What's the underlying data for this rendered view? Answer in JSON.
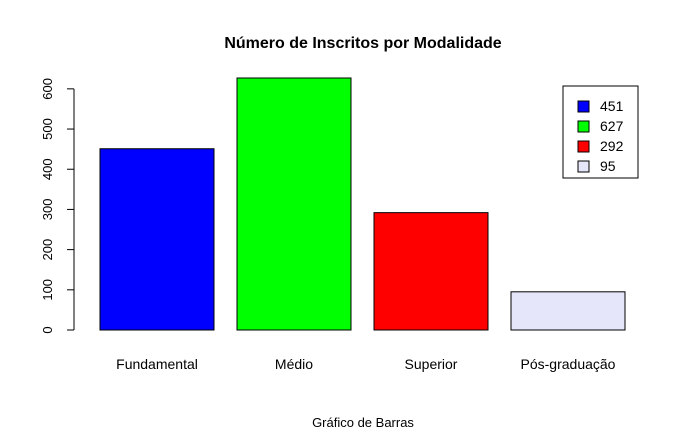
{
  "chart_data": {
    "type": "bar",
    "title": "Número de Inscritos por Modalidade",
    "xlabel": "Gráfico de Barras",
    "ylabel": "",
    "categories": [
      "Fundamental",
      "Médio",
      "Superior",
      "Pós-graduação"
    ],
    "values": [
      451,
      627,
      292,
      95
    ],
    "colors": [
      "#0000ff",
      "#00ff00",
      "#ff0000",
      "#e6e6fa"
    ],
    "ylim": [
      0,
      627
    ],
    "yticks": [
      0,
      100,
      200,
      300,
      400,
      500,
      600
    ],
    "grid": false,
    "legend": {
      "placement": "top-right",
      "entries": [
        {
          "label": "451",
          "color": "#0000ff"
        },
        {
          "label": "627",
          "color": "#00ff00"
        },
        {
          "label": "292",
          "color": "#ff0000"
        },
        {
          "label": "95",
          "color": "#e6e6fa"
        }
      ]
    }
  }
}
